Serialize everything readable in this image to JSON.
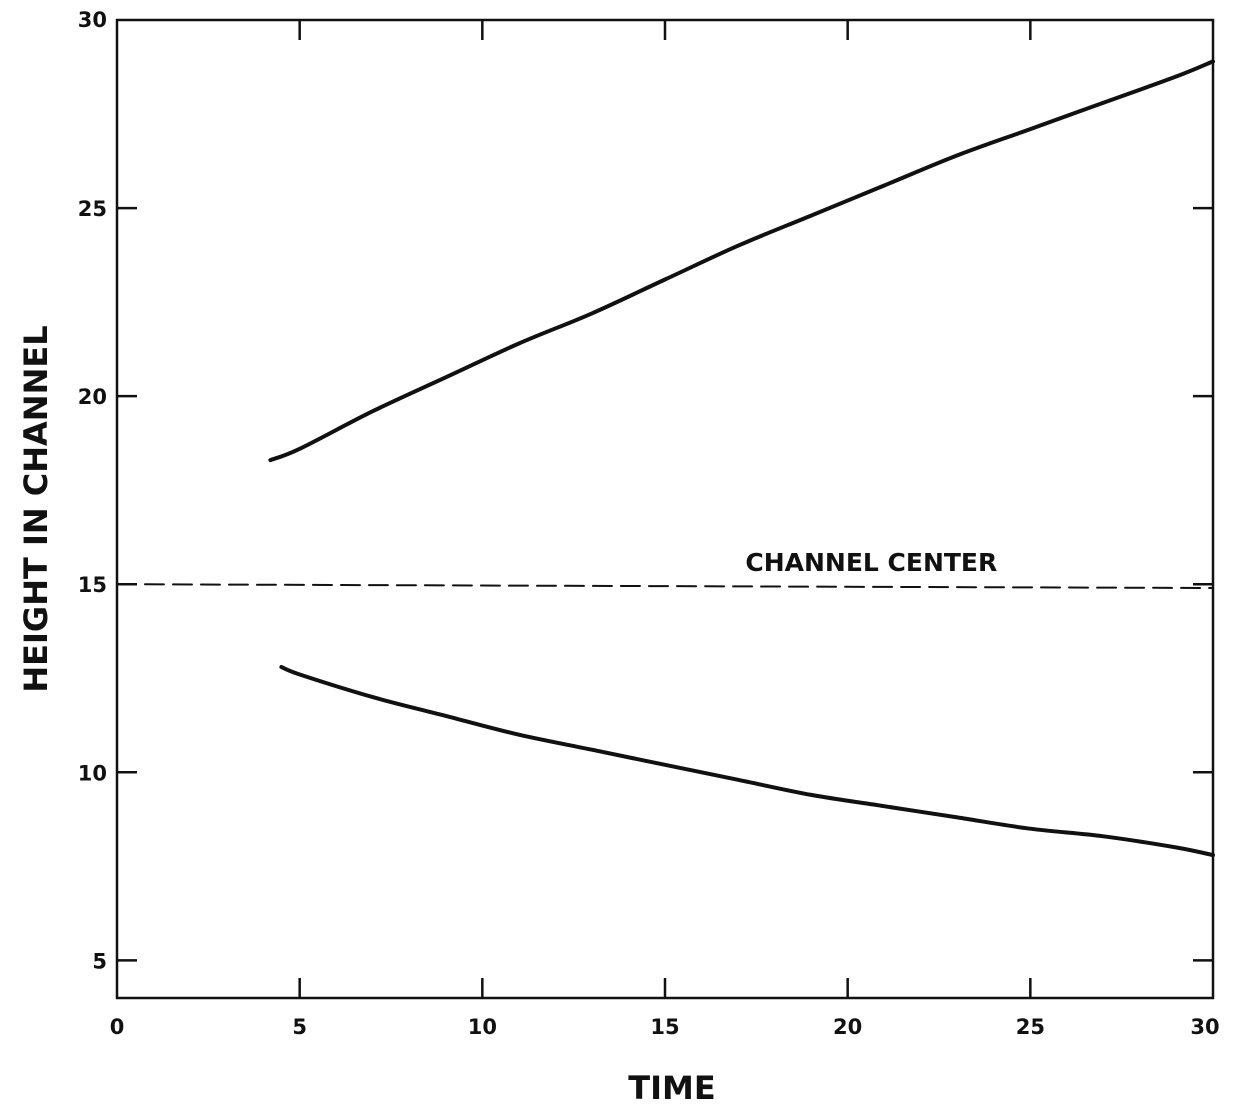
{
  "chart_data": {
    "type": "line",
    "title": "",
    "xlabel": "TIME",
    "ylabel": "HEIGHT IN CHANNEL",
    "xlim": [
      0,
      30
    ],
    "ylim": [
      4,
      30
    ],
    "x_ticks": [
      0,
      5,
      10,
      15,
      20,
      25,
      30
    ],
    "y_ticks": [
      5,
      10,
      15,
      20,
      25,
      30
    ],
    "grid": false,
    "legend": "none",
    "series": [
      {
        "style": "solid",
        "color": "#111111",
        "points": [
          [
            4.2,
            18.3
          ],
          [
            5,
            18.6
          ],
          [
            7,
            19.6
          ],
          [
            9,
            20.5
          ],
          [
            11,
            21.4
          ],
          [
            13,
            22.2
          ],
          [
            15,
            23.1
          ],
          [
            17,
            24.0
          ],
          [
            19,
            24.8
          ],
          [
            21,
            25.6
          ],
          [
            23,
            26.4
          ],
          [
            25,
            27.1
          ],
          [
            27,
            27.8
          ],
          [
            29,
            28.5
          ],
          [
            30,
            28.9
          ]
        ]
      },
      {
        "style": "solid",
        "color": "#111111",
        "points": [
          [
            4.5,
            12.8
          ],
          [
            5,
            12.6
          ],
          [
            7,
            12.0
          ],
          [
            9,
            11.5
          ],
          [
            11,
            11.0
          ],
          [
            13,
            10.6
          ],
          [
            15,
            10.2
          ],
          [
            17,
            9.8
          ],
          [
            19,
            9.4
          ],
          [
            21,
            9.1
          ],
          [
            23,
            8.8
          ],
          [
            25,
            8.5
          ],
          [
            27,
            8.3
          ],
          [
            29,
            8.0
          ],
          [
            30,
            7.8
          ]
        ]
      },
      {
        "style": "dashed",
        "color": "#111111",
        "points": [
          [
            0,
            15.0
          ],
          [
            30,
            14.9
          ]
        ]
      }
    ],
    "annotations": [
      {
        "text": "CHANNEL CENTER",
        "x": 17.2,
        "y": 15.4
      }
    ]
  }
}
